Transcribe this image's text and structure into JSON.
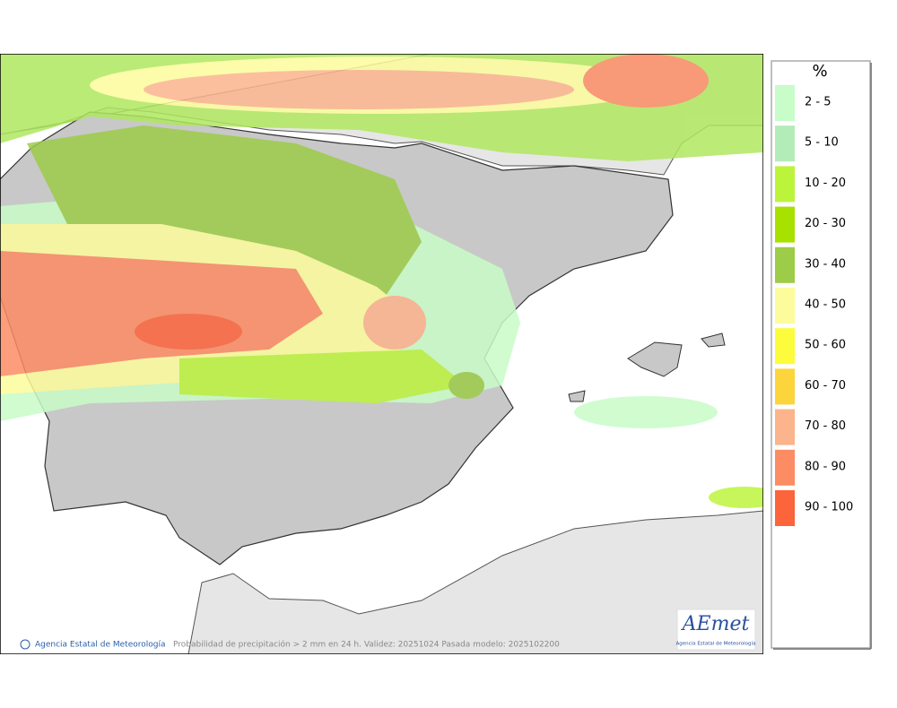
{
  "legend": {
    "title": "%",
    "items": [
      {
        "label": "2 - 5",
        "color": "#c8fcc8"
      },
      {
        "label": "5 - 10",
        "color": "#b4ecb8"
      },
      {
        "label": "10 - 20",
        "color": "#bcf43c"
      },
      {
        "label": "20 - 30",
        "color": "#a8e000"
      },
      {
        "label": "30 - 40",
        "color": "#9ccc48"
      },
      {
        "label": "40 - 50",
        "color": "#fcfc9c"
      },
      {
        "label": "50 - 60",
        "color": "#fcfc3c"
      },
      {
        "label": "60 - 70",
        "color": "#fcd43c"
      },
      {
        "label": "70 - 80",
        "color": "#fcb48c"
      },
      {
        "label": "80 - 90",
        "color": "#fc8c64"
      },
      {
        "label": "90 - 100",
        "color": "#fc643c"
      }
    ]
  },
  "footer": {
    "credit": "Agencia Estatal de Meteorología",
    "caption": "Probabilidad de precipitación > 2 mm en 24 h. Validez: 20251024 Pasada modelo: 2025102200"
  },
  "logo": {
    "name": "AEmet",
    "subtitle": "Agencia Estatal de Meteorología"
  }
}
